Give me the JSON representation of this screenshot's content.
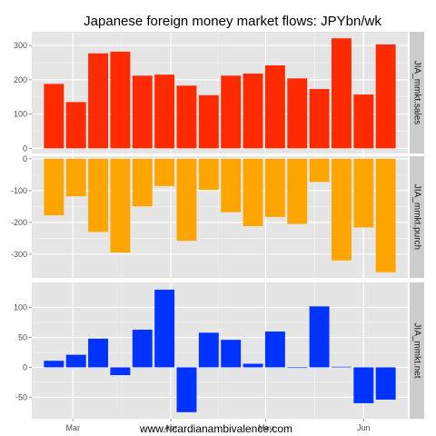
{
  "title": "Japanese foreign money market flows: JPYbn/wk",
  "caption": "www.ricardianambivalence.com",
  "colors": {
    "panel_bg": "#e5e5e5",
    "grid_major": "#ffffff",
    "grid_minor": "#f2f2f2",
    "strip_bg": "#cccccc"
  },
  "chart_data": [
    {
      "type": "bar",
      "panel": "JIA_mmkt.sales",
      "color": "#ff2a00",
      "x": [
        "2012-02-24",
        "2012-03-02",
        "2012-03-09",
        "2012-03-16",
        "2012-03-23",
        "2012-03-30",
        "2012-04-06",
        "2012-04-13",
        "2012-04-20",
        "2012-04-27",
        "2012-05-04",
        "2012-05-11",
        "2012-05-18",
        "2012-05-25",
        "2012-06-01",
        "2012-06-08"
      ],
      "values": [
        188,
        135,
        277,
        282,
        212,
        215,
        183,
        155,
        212,
        218,
        242,
        204,
        173,
        321,
        157,
        303
      ],
      "ylim": [
        -15,
        340
      ],
      "yticks": [
        0,
        100,
        200,
        300
      ]
    },
    {
      "type": "bar",
      "panel": "JIA_mmkt.purch",
      "color": "#ffa500",
      "x": [
        "2012-02-24",
        "2012-03-02",
        "2012-03-09",
        "2012-03-16",
        "2012-03-23",
        "2012-03-30",
        "2012-04-06",
        "2012-04-13",
        "2012-04-20",
        "2012-04-27",
        "2012-05-04",
        "2012-05-11",
        "2012-05-18",
        "2012-05-25",
        "2012-06-01",
        "2012-06-08"
      ],
      "values": [
        -178,
        -118,
        -230,
        -295,
        -150,
        -86,
        -258,
        -98,
        -168,
        -212,
        -183,
        -205,
        -73,
        -320,
        -216,
        -357
      ],
      "ylim": [
        -375,
        8
      ],
      "yticks": [
        -300,
        -200,
        -100,
        0
      ]
    },
    {
      "type": "bar",
      "panel": "JIA_mmkt.net",
      "color": "#0033ff",
      "x": [
        "2012-02-24",
        "2012-03-02",
        "2012-03-09",
        "2012-03-16",
        "2012-03-23",
        "2012-03-30",
        "2012-04-06",
        "2012-04-13",
        "2012-04-20",
        "2012-04-27",
        "2012-05-04",
        "2012-05-11",
        "2012-05-18",
        "2012-05-25",
        "2012-06-01",
        "2012-06-08"
      ],
      "values": [
        11,
        21,
        48,
        -13,
        63,
        130,
        -75,
        58,
        46,
        6,
        60,
        -1,
        102,
        1,
        -60,
        -54
      ],
      "ylim": [
        -86,
        142
      ],
      "yticks": [
        -50,
        0,
        50,
        100
      ]
    }
  ],
  "x_axis": {
    "ticks": [
      {
        "date": "2012-03-01",
        "label": "Mar"
      },
      {
        "date": "2012-04-01",
        "label": "Apr"
      },
      {
        "date": "2012-05-01",
        "label": "May"
      },
      {
        "date": "2012-06-01",
        "label": "Jun"
      }
    ],
    "xlim": [
      "2012-02-17",
      "2012-06-15"
    ],
    "bar_width_days": 6.3
  }
}
